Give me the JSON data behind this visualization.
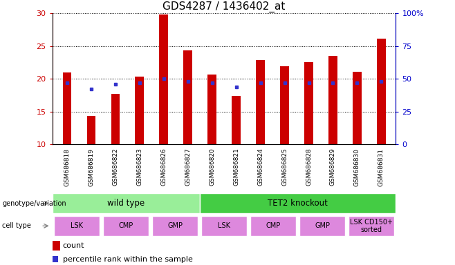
{
  "title": "GDS4287 / 1436402_at",
  "samples": [
    "GSM686818",
    "GSM686819",
    "GSM686822",
    "GSM686823",
    "GSM686826",
    "GSM686827",
    "GSM686820",
    "GSM686821",
    "GSM686824",
    "GSM686825",
    "GSM686828",
    "GSM686829",
    "GSM686830",
    "GSM686831"
  ],
  "counts": [
    21.0,
    14.3,
    17.7,
    20.3,
    29.8,
    24.3,
    20.7,
    17.4,
    22.9,
    21.9,
    22.6,
    23.5,
    21.1,
    26.1
  ],
  "percentile_ranks": [
    47,
    42,
    46,
    47,
    50,
    48,
    47,
    44,
    47,
    47,
    47,
    47,
    47,
    48
  ],
  "ylim_left": [
    10,
    30
  ],
  "ylim_right": [
    0,
    100
  ],
  "yticks_left": [
    10,
    15,
    20,
    25,
    30
  ],
  "yticks_right": [
    0,
    25,
    50,
    75,
    100
  ],
  "bar_color": "#cc0000",
  "dot_color": "#3333cc",
  "bar_width": 0.35,
  "genotype_groups": [
    {
      "label": "wild type",
      "start": 0,
      "end": 6,
      "color": "#99ee99"
    },
    {
      "label": "TET2 knockout",
      "start": 6,
      "end": 14,
      "color": "#44cc44"
    }
  ],
  "cell_type_groups": [
    {
      "label": "LSK",
      "start": 0,
      "end": 2
    },
    {
      "label": "CMP",
      "start": 2,
      "end": 4
    },
    {
      "label": "GMP",
      "start": 4,
      "end": 6
    },
    {
      "label": "LSK",
      "start": 6,
      "end": 8
    },
    {
      "label": "CMP",
      "start": 8,
      "end": 10
    },
    {
      "label": "GMP",
      "start": 10,
      "end": 12
    },
    {
      "label": "LSK CD150+\nsorted",
      "start": 12,
      "end": 14
    }
  ],
  "cell_type_color": "#dd88dd",
  "xtick_bg_color": "#c8c8c8",
  "legend_count_label": "count",
  "legend_percentile_label": "percentile rank within the sample",
  "tick_label_color_left": "#cc0000",
  "tick_label_color_right": "#0000cc",
  "title_fontsize": 11
}
